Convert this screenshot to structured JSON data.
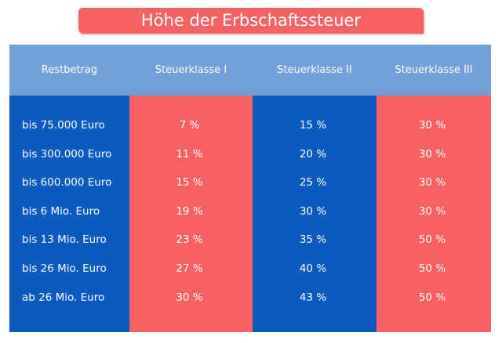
{
  "title": "Höhe der Erbschaftssteuer",
  "colors": {
    "title_bg": "#f86264",
    "header_bg": "#74a0da",
    "blue": "#0b5bbf",
    "red": "#f86264"
  },
  "chart_data": {
    "type": "table",
    "title": "Höhe der Erbschaftssteuer",
    "columns": [
      "Restbetrag",
      "Steuerklasse I",
      "Steuerklasse II",
      "Steuerklasse III"
    ],
    "rows": [
      [
        "bis 75.000 Euro",
        "7 %",
        "15 %",
        "30 %"
      ],
      [
        "bis 300.000 Euro",
        "11 %",
        "20 %",
        "30 %"
      ],
      [
        "bis 600.000 Euro",
        "15 %",
        "25 %",
        "30 %"
      ],
      [
        "bis 6 Mio. Euro",
        "19 %",
        "30 %",
        "30 %"
      ],
      [
        "bis 13 Mio. Euro",
        "23 %",
        "35 %",
        "50 %"
      ],
      [
        "bis 26 Mio. Euro",
        "27 %",
        "40 %",
        "50 %"
      ],
      [
        "ab 26 Mio. Euro",
        "30 %",
        "43 %",
        "50 %"
      ]
    ]
  }
}
